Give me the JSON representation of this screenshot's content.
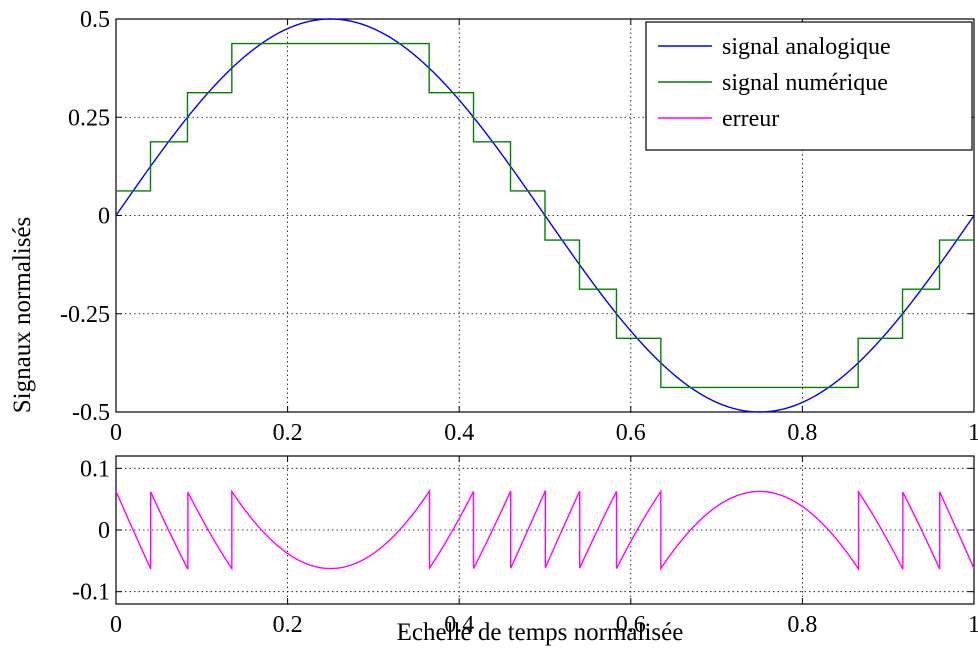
{
  "chart_data": [
    {
      "type": "line",
      "title": "",
      "xlabel": "",
      "ylabel": "Signaux normalisés",
      "xlim": [
        0,
        1
      ],
      "ylim": [
        -0.5,
        0.5
      ],
      "grid": true,
      "legend_position": "top-right",
      "x_ticks": [
        0,
        0.2,
        0.4,
        0.6,
        0.8,
        1
      ],
      "x_tick_labels": [
        "0",
        "0.2",
        "0.4",
        "0.6",
        "0.8",
        "1"
      ],
      "y_ticks": [
        -0.5,
        -0.25,
        0,
        0.25,
        0.5
      ],
      "y_tick_labels": [
        "-0.5",
        "-0.25",
        "0",
        "0.25",
        "0.5"
      ],
      "series": [
        {
          "name": "signal analogique",
          "color": "#0000ff",
          "function": "0.5*sin(2*pi*x)",
          "x": [
            0,
            0.05,
            0.1,
            0.15,
            0.2,
            0.25,
            0.3,
            0.35,
            0.4,
            0.45,
            0.5,
            0.55,
            0.6,
            0.65,
            0.7,
            0.75,
            0.8,
            0.85,
            0.9,
            0.95,
            1
          ],
          "y": [
            0,
            0.1545,
            0.2939,
            0.4045,
            0.4755,
            0.5,
            0.4755,
            0.4045,
            0.2939,
            0.1545,
            0,
            -0.1545,
            -0.2939,
            -0.4045,
            -0.4755,
            -0.5,
            -0.4755,
            -0.4045,
            -0.2939,
            -0.1545,
            0
          ]
        },
        {
          "name": "signal numérique",
          "color": "#008000",
          "quantization_step": 0.125,
          "levels": [
            0.0625,
            0.1875,
            0.3125,
            0.4375,
            0.3125,
            0.1875,
            0.0625,
            -0.0625,
            -0.1875,
            -0.3125,
            -0.4375,
            -0.3125,
            -0.1875,
            -0.0625
          ],
          "step_x": [
            0,
            0.0402,
            0.0833,
            0.135,
            0.365,
            0.4167,
            0.4598,
            0.5,
            0.5402,
            0.5833,
            0.635,
            0.865,
            0.9167,
            0.9598,
            1
          ]
        },
        {
          "name": "erreur",
          "color": "#ff00ff",
          "function": "quantized - analog",
          "range": [
            -0.0625,
            0.0625
          ]
        }
      ]
    },
    {
      "type": "line",
      "title": "",
      "xlabel": "Echelle de temps normalisée",
      "ylabel": "",
      "xlim": [
        0,
        1
      ],
      "ylim": [
        -0.12,
        0.12
      ],
      "grid": true,
      "x_ticks": [
        0,
        0.2,
        0.4,
        0.6,
        0.8,
        1
      ],
      "x_tick_labels": [
        "0",
        "0.2",
        "0.4",
        "0.6",
        "0.8",
        "1"
      ],
      "y_ticks": [
        -0.1,
        0,
        0.1
      ],
      "y_tick_labels": [
        "-0.1",
        "0",
        "0.1"
      ],
      "series": [
        {
          "name": "erreur",
          "color": "#ff00ff",
          "function": "quantized - analog"
        }
      ]
    }
  ]
}
